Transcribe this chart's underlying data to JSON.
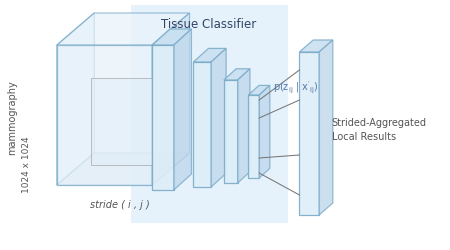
{
  "bg_color": "#ffffff",
  "blue_rect_color": "#d0e8f8",
  "box_face_light": "#e8f2fa",
  "box_face_mid": "#d0e4f4",
  "box_edge_color": "#7aaac8",
  "box_edge_dark": "#5588aa",
  "tissue_classifier_label": "Tissue Classifier",
  "mammography_label": "mammography",
  "size_label": "1024 x 1024",
  "stride_label": "stride ( i , j )",
  "result_label": "Strided-Aggregated\nLocal Results",
  "text_color_dark": "#555555",
  "text_color_blue": "#6688aa",
  "line_color": "#777777"
}
